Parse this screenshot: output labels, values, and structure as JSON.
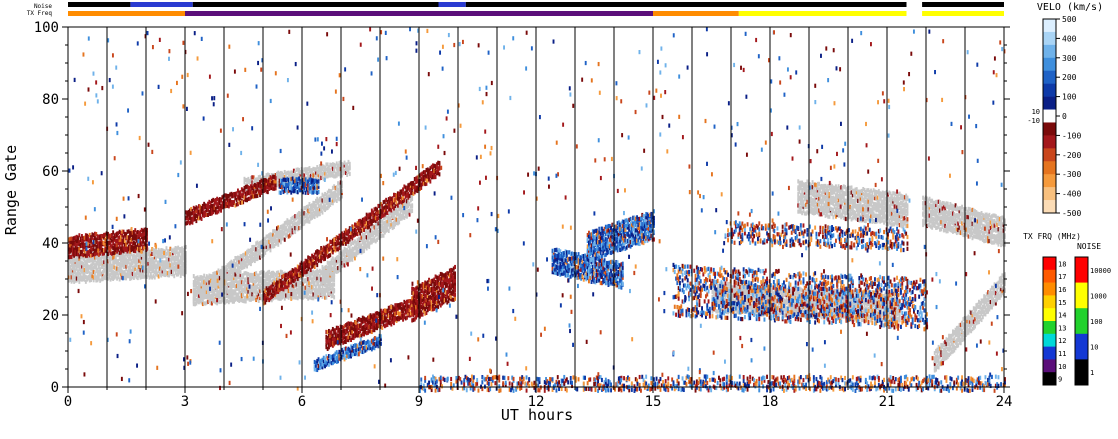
{
  "chart_data": {
    "type": "heatmap",
    "xlabel": "UT hours",
    "ylabel": "Range Gate",
    "x_ticks": [
      "0",
      "3",
      "6",
      "9",
      "12",
      "15",
      "18",
      "21",
      "24"
    ],
    "y_ticks": [
      "0",
      "20",
      "40",
      "60",
      "80",
      "100"
    ],
    "xlim": [
      0,
      24
    ],
    "ylim": [
      0,
      100
    ],
    "vertical_gridlines_hours": [
      1,
      2,
      3,
      4,
      5,
      6,
      7,
      8,
      9,
      10,
      11,
      12,
      13,
      14,
      15,
      16,
      17,
      18,
      19,
      20,
      21,
      22,
      23
    ],
    "top_strips": {
      "noise_label": "Noise",
      "txfreq_label": "TX Freq",
      "noise_segments": [
        {
          "start": 0,
          "end": 1.6,
          "color": "#000000"
        },
        {
          "start": 1.6,
          "end": 3.2,
          "color": "#2a3bd1"
        },
        {
          "start": 3.2,
          "end": 9.5,
          "color": "#000000"
        },
        {
          "start": 9.5,
          "end": 10.2,
          "color": "#2a3bd1"
        },
        {
          "start": 10.2,
          "end": 21.5,
          "color": "#000000"
        },
        {
          "start": 21.9,
          "end": 24,
          "color": "#000000"
        }
      ],
      "txfreq_segments": [
        {
          "start": 0,
          "end": 3.0,
          "color": "#ff8c00"
        },
        {
          "start": 3.0,
          "end": 15.0,
          "color": "#5b0f7a"
        },
        {
          "start": 15.0,
          "end": 17.2,
          "color": "#ff8c00"
        },
        {
          "start": 17.2,
          "end": 21.5,
          "color": "#ffff00"
        },
        {
          "start": 21.9,
          "end": 24,
          "color": "#ffff00"
        }
      ]
    },
    "ground_scatter_color": "#c8c8c8",
    "bands": [
      {
        "kind": "ground",
        "t0": 0.0,
        "t1": 3.0,
        "g0": 34,
        "g1": 36,
        "w": 8
      },
      {
        "kind": "ground",
        "t0": 3.2,
        "t1": 6.8,
        "g0": 28,
        "g1": 30,
        "w": 8
      },
      {
        "kind": "ground",
        "t0": 3.2,
        "t1": 7.0,
        "g0": 26,
        "g1": 56,
        "w": 5
      },
      {
        "kind": "ground",
        "t0": 4.5,
        "t1": 7.2,
        "g0": 57,
        "g1": 62,
        "w": 4
      },
      {
        "kind": "ground",
        "t0": 6.5,
        "t1": 8.8,
        "g0": 32,
        "g1": 52,
        "w": 5
      },
      {
        "kind": "ground",
        "t0": 16.5,
        "t1": 21.3,
        "g0": 26,
        "g1": 23,
        "w": 8
      },
      {
        "kind": "ground",
        "t0": 18.7,
        "t1": 21.5,
        "g0": 54,
        "g1": 50,
        "w": 9
      },
      {
        "kind": "ground",
        "t0": 21.9,
        "t1": 24.0,
        "g0": 50,
        "g1": 44,
        "w": 8
      },
      {
        "kind": "ground",
        "t0": 22.2,
        "t1": 24.0,
        "g0": 8,
        "g1": 30,
        "w": 6
      },
      {
        "kind": "negative",
        "t0": 3.0,
        "t1": 5.3,
        "g0": 48,
        "g1": 58,
        "w": 4
      },
      {
        "kind": "negative",
        "t0": 5.0,
        "t1": 9.5,
        "g0": 26,
        "g1": 62,
        "w": 4
      },
      {
        "kind": "negative",
        "t0": 6.6,
        "t1": 9.0,
        "g0": 14,
        "g1": 24,
        "w": 5
      },
      {
        "kind": "negative",
        "t0": 8.8,
        "t1": 9.9,
        "g0": 24,
        "g1": 30,
        "w": 9
      },
      {
        "kind": "negative",
        "t0": 0.0,
        "t1": 2.0,
        "g0": 40,
        "g1": 42,
        "w": 6
      },
      {
        "kind": "positive",
        "t0": 6.3,
        "t1": 8.0,
        "g0": 7,
        "g1": 14,
        "w": 3
      },
      {
        "kind": "positive",
        "t0": 12.4,
        "t1": 14.2,
        "g0": 36,
        "g1": 32,
        "w": 7
      },
      {
        "kind": "positive",
        "t0": 13.3,
        "t1": 15.0,
        "g0": 40,
        "g1": 46,
        "w": 8
      },
      {
        "kind": "positive",
        "t0": 5.4,
        "t1": 6.4,
        "g0": 57,
        "g1": 57,
        "w": 4
      },
      {
        "kind": "mixed",
        "t0": 9.0,
        "t1": 24.0,
        "g0": 2,
        "g1": 2,
        "w": 4
      },
      {
        "kind": "mixed",
        "t0": 15.5,
        "t1": 22.0,
        "g0": 28,
        "g1": 24,
        "w": 14
      },
      {
        "kind": "mixed",
        "t0": 16.8,
        "t1": 21.5,
        "g0": 44,
        "g1": 42,
        "w": 6
      }
    ],
    "legend": {
      "velocity": {
        "title": "VELO (km/s)",
        "ticks": [
          "500",
          "400",
          "300",
          "200",
          "100",
          "0",
          "-100",
          "-200",
          "-300",
          "-400",
          "-500"
        ],
        "mid_labels": [
          "10",
          "-10"
        ],
        "colors": [
          "#dcefff",
          "#a9d4f5",
          "#6fb2ea",
          "#3f8fdd",
          "#1f62c6",
          "#0e3aa8",
          "#0a1f86",
          "#ffffff",
          "#7a0a0a",
          "#a3171b",
          "#c9461c",
          "#e5741f",
          "#f59a3c",
          "#f8c07e",
          "#fbdcb6"
        ]
      },
      "txfreq": {
        "title": "TX FRQ (MHz)",
        "ticks": [
          "18",
          "17",
          "16",
          "15",
          "14",
          "13",
          "12",
          "11",
          "10",
          "9"
        ],
        "colors": [
          "#ff0000",
          "#ff5a00",
          "#ff8c00",
          "#ffd000",
          "#ffff00",
          "#22d22d",
          "#00d8d8",
          "#1438d4",
          "#5b0f7a",
          "#000000"
        ]
      },
      "noise": {
        "title": "NOISE",
        "ticks": [
          "10000",
          "1000",
          "100",
          "10",
          "1"
        ],
        "colors": [
          "#ff0000",
          "#ffff00",
          "#22d22d",
          "#1438d4",
          "#000000"
        ]
      }
    }
  }
}
